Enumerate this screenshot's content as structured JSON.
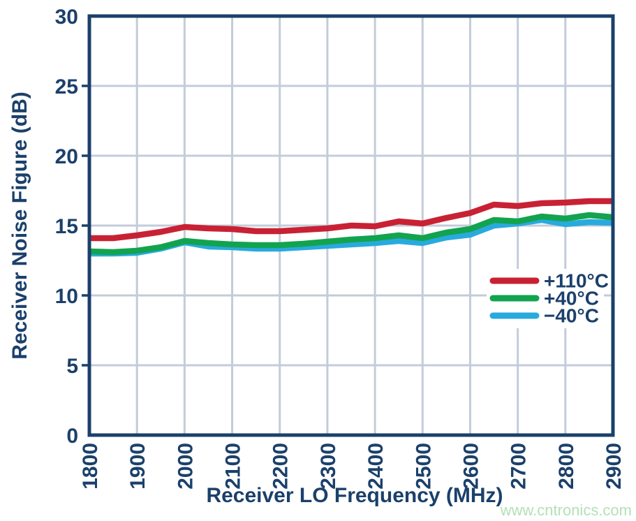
{
  "chart_data": {
    "type": "line",
    "title": "",
    "xlabel": "Receiver LO Frequency (MHz)",
    "ylabel": "Receiver Noise Figure (dB)",
    "xlim": [
      1800,
      2900
    ],
    "ylim": [
      0,
      30
    ],
    "x_ticks": [
      1800,
      1900,
      2000,
      2100,
      2200,
      2300,
      2400,
      2500,
      2600,
      2700,
      2800,
      2900
    ],
    "y_ticks": [
      0,
      5,
      10,
      15,
      20,
      25,
      30
    ],
    "grid": true,
    "legend_position": "right-middle",
    "x": [
      1800,
      1850,
      1900,
      1950,
      2000,
      2050,
      2100,
      2150,
      2200,
      2250,
      2300,
      2350,
      2400,
      2450,
      2500,
      2550,
      2600,
      2650,
      2700,
      2750,
      2800,
      2850,
      2900
    ],
    "series": [
      {
        "name": "+110°C",
        "color": "#c92134",
        "values": [
          14.1,
          14.1,
          14.3,
          14.55,
          14.9,
          14.8,
          14.75,
          14.6,
          14.6,
          14.7,
          14.8,
          15.0,
          14.95,
          15.3,
          15.15,
          15.55,
          15.9,
          16.5,
          16.4,
          16.6,
          16.65,
          16.75,
          16.75
        ]
      },
      {
        "name": "+40°C",
        "color": "#12a34f",
        "values": [
          13.15,
          13.1,
          13.2,
          13.45,
          13.9,
          13.75,
          13.65,
          13.6,
          13.6,
          13.7,
          13.85,
          14.0,
          14.1,
          14.3,
          14.1,
          14.5,
          14.75,
          15.4,
          15.3,
          15.65,
          15.5,
          15.75,
          15.6
        ]
      },
      {
        "name": "−40°C",
        "color": "#29aadd",
        "values": [
          13.0,
          13.0,
          13.05,
          13.35,
          13.8,
          13.5,
          13.45,
          13.35,
          13.35,
          13.45,
          13.55,
          13.65,
          13.75,
          13.9,
          13.75,
          14.15,
          14.35,
          15.0,
          15.15,
          15.4,
          15.1,
          15.25,
          15.2
        ]
      }
    ]
  },
  "colors": {
    "axis": "#1b406b",
    "grid": "#c3ccd9",
    "background": "#ffffff",
    "legend_background": "#ffffff"
  },
  "watermark": {
    "text": "www.cntronics.com",
    "color": "#b5e0b8"
  }
}
